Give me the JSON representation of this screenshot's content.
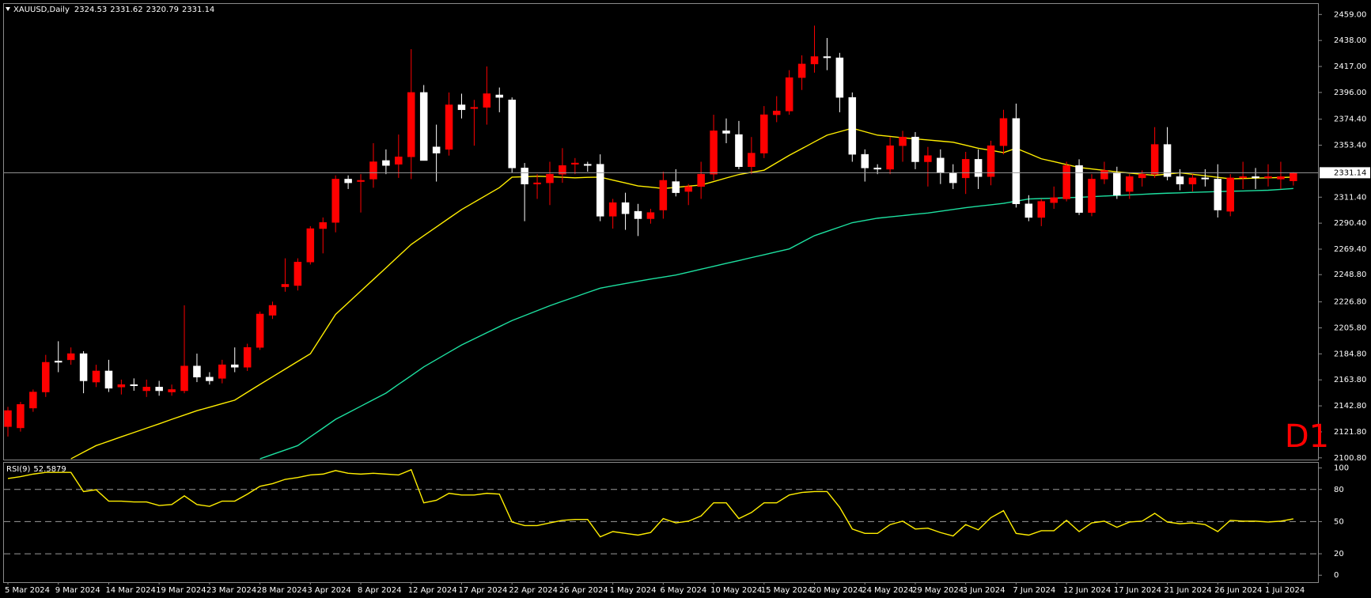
{
  "chart_data": [
    {
      "type": "candlestick",
      "title": "XAUUSD,Daily",
      "annotation": "D1",
      "categories": [
        "5 Mar 2024",
        null,
        null,
        null,
        "9 Mar 2024",
        null,
        null,
        null,
        "14 Mar 2024",
        null,
        null,
        null,
        "19 Mar 2024",
        null,
        null,
        null,
        "23 Mar 2024",
        null,
        null,
        null,
        "28 Mar 2024",
        null,
        null,
        null,
        "3 Apr 2024",
        null,
        null,
        null,
        "8 Apr 2024",
        null,
        null,
        null,
        "12 Apr 2024",
        null,
        null,
        null,
        "17 Apr 2024",
        null,
        null,
        null,
        "22 Apr 2024",
        null,
        null,
        null,
        "26 Apr 2024",
        null,
        null,
        null,
        "1 May 2024",
        null,
        null,
        null,
        "6 May 2024",
        null,
        null,
        null,
        "10 May 2024",
        null,
        null,
        null,
        "15 May 2024",
        null,
        null,
        null,
        "20 May 2024",
        null,
        null,
        null,
        "24 May 2024",
        null,
        null,
        null,
        "29 May 2024",
        null,
        null,
        null,
        "3 Jun 2024",
        null,
        null,
        null,
        "7 Jun 2024",
        null,
        null,
        null,
        "12 Jun 2024",
        null,
        null,
        null,
        "17 Jun 2024",
        null,
        null,
        null,
        "21 Jun 2024",
        null,
        null,
        null,
        "26 Jun 2024",
        null,
        null,
        null,
        "1 Jul 2024",
        null,
        null
      ],
      "open": [
        2126,
        2125,
        2141,
        2154,
        2179,
        2180,
        2185,
        2162,
        2171,
        2158,
        2160,
        2155,
        2158,
        2154,
        2155,
        2175,
        2166,
        2165,
        2176,
        2174,
        2190,
        2216,
        2239,
        2240,
        2259,
        2286,
        2291,
        2326,
        2324,
        2326,
        2341,
        2338,
        2344,
        2396,
        2352,
        2350,
        2386,
        2383,
        2384,
        2394,
        2390,
        2335,
        2322,
        2323,
        2330,
        2338,
        2338,
        2338,
        2296,
        2307,
        2300,
        2294,
        2301,
        2324,
        2316,
        2320,
        2330,
        2365,
        2362,
        2336,
        2347,
        2378,
        2381,
        2408,
        2419,
        2425,
        2424,
        2392,
        2346,
        2335,
        2334,
        2353,
        2360,
        2340,
        2343,
        2331,
        2327,
        2342,
        2328,
        2353,
        2375,
        2306,
        2295,
        2307,
        2310,
        2337,
        2299,
        2326,
        2331,
        2316,
        2327,
        2330,
        2354,
        2328,
        2322,
        2327,
        2326,
        2300,
        2327,
        2328,
        2327,
        2326,
        2324.53
      ],
      "high": [
        2142,
        2146,
        2156,
        2184,
        2195,
        2190,
        2187,
        2176,
        2180,
        2164,
        2165,
        2164,
        2163,
        2160,
        2224,
        2185,
        2170,
        2180,
        2190,
        2193,
        2219,
        2227,
        2262,
        2262,
        2288,
        2295,
        2329,
        2329,
        2330,
        2355,
        2350,
        2362,
        2431,
        2402,
        2370,
        2396,
        2395,
        2390,
        2417,
        2400,
        2392,
        2339,
        2330,
        2340,
        2351,
        2343,
        2340,
        2346,
        2310,
        2315,
        2306,
        2302,
        2332,
        2334,
        2322,
        2340,
        2378,
        2375,
        2373,
        2360,
        2385,
        2393,
        2414,
        2426,
        2450,
        2440,
        2428,
        2396,
        2350,
        2338,
        2360,
        2365,
        2364,
        2352,
        2350,
        2338,
        2348,
        2350,
        2357,
        2382,
        2387,
        2313,
        2310,
        2320,
        2340,
        2342,
        2330,
        2340,
        2336,
        2330,
        2333,
        2368,
        2368,
        2334,
        2330,
        2334,
        2338,
        2330,
        2340,
        2335,
        2338,
        2340,
        2331.62
      ],
      "low": [
        2118,
        2122,
        2138,
        2150,
        2170,
        2176,
        2153,
        2158,
        2154,
        2152,
        2155,
        2150,
        2151,
        2151,
        2153,
        2162,
        2160,
        2161,
        2170,
        2171,
        2188,
        2213,
        2235,
        2236,
        2257,
        2266,
        2283,
        2318,
        2299,
        2319,
        2330,
        2327,
        2326,
        2341,
        2324,
        2345,
        2375,
        2353,
        2370,
        2380,
        2331,
        2292,
        2310,
        2305,
        2323,
        2330,
        2332,
        2292,
        2286,
        2285,
        2280,
        2290,
        2294,
        2312,
        2305,
        2310,
        2325,
        2355,
        2334,
        2330,
        2343,
        2372,
        2378,
        2398,
        2412,
        2414,
        2380,
        2340,
        2324,
        2330,
        2330,
        2340,
        2334,
        2320,
        2322,
        2318,
        2314,
        2318,
        2321,
        2346,
        2303,
        2292,
        2288,
        2302,
        2308,
        2297,
        2296,
        2322,
        2310,
        2310,
        2320,
        2327,
        2325,
        2317,
        2316,
        2320,
        2295,
        2296,
        2318,
        2318,
        2320,
        2318,
        2320.79
      ],
      "close": [
        2139,
        2144,
        2154,
        2178,
        2178,
        2185,
        2163,
        2171,
        2157,
        2160,
        2159,
        2158,
        2155,
        2156,
        2175,
        2166,
        2163,
        2176,
        2174,
        2190,
        2217,
        2224,
        2241,
        2259,
        2286,
        2291,
        2326,
        2323,
        2325,
        2340,
        2337,
        2344,
        2396,
        2341,
        2347,
        2386,
        2382,
        2384,
        2395,
        2392,
        2335,
        2322,
        2323,
        2330,
        2337,
        2339,
        2337,
        2296,
        2307,
        2298,
        2294,
        2299,
        2325,
        2315,
        2320,
        2330,
        2365,
        2363,
        2336,
        2347,
        2378,
        2381,
        2408,
        2419,
        2425,
        2424,
        2392,
        2346,
        2335,
        2334,
        2353,
        2360,
        2340,
        2345,
        2331,
        2323,
        2342,
        2328,
        2353,
        2375,
        2306,
        2295,
        2308,
        2311,
        2337,
        2299,
        2326,
        2333,
        2313,
        2328,
        2330,
        2354,
        2328,
        2322,
        2327,
        2326,
        2301,
        2327,
        2328,
        2327,
        2328,
        2328,
        2331.14
      ],
      "up_color": "#ff0000",
      "down_color": "#ffffff",
      "ma_lines": [
        {
          "color": "#ffee00",
          "values": [
            null,
            null,
            null,
            null,
            null,
            2100.0,
            2105.4,
            2110.7,
            2114.2,
            2117.8,
            2121.3,
            2124.8,
            2128.3,
            2131.9,
            2135.4,
            2138.9,
            2141.7,
            2144.6,
            2147.4,
            2153.8,
            2160.1,
            2166.3,
            2172.5,
            2178.7,
            2184.9,
            2200.8,
            2216.7,
            2226.1,
            2235.5,
            2244.9,
            2254.3,
            2263.8,
            2273.2,
            2280.3,
            2287.3,
            2294.4,
            2301.4,
            2307.3,
            2313.2,
            2319.1,
            2327.6,
            2327.9,
            2328.3,
            2328.0,
            2327.5,
            2327.0,
            2327.4,
            2327.6,
            2325.2,
            2322.9,
            2320.5,
            2319.5,
            2318.4,
            2319.3,
            2320.3,
            2321.2,
            2324.0,
            2326.9,
            2329.7,
            2331.5,
            2333.2,
            2339.2,
            2345.2,
            2350.6,
            2356.1,
            2361.5,
            2364.3,
            2367.1,
            2364.3,
            2361.5,
            2360.5,
            2359.4,
            2358.5,
            2357.6,
            2356.7,
            2355.8,
            2353.4,
            2350.9,
            2349.2,
            2347.4,
            2350.9,
            2346.7,
            2342.4,
            2340.1,
            2337.7,
            2335.4,
            2334.2,
            2333.0,
            2331.8,
            2330.9,
            2329.9,
            2329.0,
            2330.1,
            2331.1,
            2329.9,
            2328.7,
            2327.4,
            2326.2,
            2326.5,
            2326.8,
            2327.0,
            2327.3,
            2327.6
          ]
        },
        {
          "color": "#1de0a0",
          "values": [
            null,
            null,
            null,
            null,
            null,
            null,
            null,
            null,
            null,
            null,
            null,
            null,
            null,
            null,
            null,
            null,
            null,
            null,
            null,
            null,
            2100.0,
            2103.6,
            2107.1,
            2110.7,
            2117.8,
            2124.8,
            2131.9,
            2137.2,
            2142.5,
            2147.8,
            2153.1,
            2160.2,
            2167.2,
            2174.3,
            2180.2,
            2186.1,
            2192.0,
            2196.9,
            2201.9,
            2206.8,
            2211.7,
            2215.7,
            2219.7,
            2223.7,
            2227.3,
            2230.8,
            2234.4,
            2237.9,
            2239.8,
            2241.6,
            2243.5,
            2245.2,
            2246.8,
            2248.5,
            2250.8,
            2253.2,
            2255.5,
            2257.9,
            2260.2,
            2262.6,
            2264.9,
            2267.3,
            2269.6,
            2275.0,
            2280.3,
            2283.8,
            2287.3,
            2290.8,
            2292.6,
            2294.4,
            2295.5,
            2296.5,
            2297.6,
            2298.6,
            2300.0,
            2301.5,
            2302.9,
            2304.1,
            2305.2,
            2306.4,
            2308.2,
            2309.9,
            2310.3,
            2310.6,
            2311.0,
            2311.3,
            2311.8,
            2312.3,
            2312.8,
            2313.2,
            2313.7,
            2314.2,
            2314.6,
            2314.9,
            2315.3,
            2315.6,
            2315.9,
            2316.2,
            2316.4,
            2316.7,
            2317.0,
            2317.7,
            2318.4
          ]
        }
      ],
      "ylim": [
        2099.4,
        2467.5
      ],
      "yticks": [
        {
          "value": 2459,
          "label": "2459.00"
        },
        {
          "value": 2438,
          "label": "2438.00"
        },
        {
          "value": 2417,
          "label": "2417.00"
        },
        {
          "value": 2396,
          "label": "2396.00"
        },
        {
          "value": 2374.4,
          "label": "2374.40"
        },
        {
          "value": 2353.4,
          "label": "2353.40"
        },
        {
          "value": 2311.4,
          "label": "2311.40"
        },
        {
          "value": 2290.4,
          "label": "2290.40"
        },
        {
          "value": 2269.4,
          "label": "2269.40"
        },
        {
          "value": 2248.8,
          "label": "2248.80"
        },
        {
          "value": 2226.8,
          "label": "2226.80"
        },
        {
          "value": 2205.8,
          "label": "2205.80"
        },
        {
          "value": 2184.8,
          "label": "2184.80"
        },
        {
          "value": 2163.8,
          "label": "2163.80"
        },
        {
          "value": 2142.8,
          "label": "2142.80"
        },
        {
          "value": 2121.8,
          "label": "2121.80"
        },
        {
          "value": 2100.8,
          "label": "2100.80"
        }
      ],
      "grid": false
    },
    {
      "type": "line",
      "title": "RSI(9)",
      "color": "#ffee00",
      "values": [
        90.2,
        91.9,
        94.3,
        95.9,
        95.9,
        95.9,
        78.0,
        79.7,
        69.1,
        69.1,
        68.3,
        68.3,
        65.0,
        65.9,
        74.0,
        65.9,
        64.2,
        69.1,
        69.1,
        75.6,
        82.9,
        85.4,
        89.4,
        91.1,
        93.5,
        94.3,
        97.6,
        95.1,
        94.3,
        95.1,
        94.3,
        93.5,
        98.4,
        67.5,
        69.9,
        76.4,
        74.8,
        74.8,
        76.4,
        75.6,
        49.6,
        46.3,
        46.3,
        48.8,
        51.2,
        52.0,
        52.0,
        35.8,
        40.7,
        39.0,
        37.4,
        39.8,
        52.8,
        48.8,
        50.4,
        55.3,
        67.5,
        67.5,
        52.8,
        58.5,
        67.5,
        67.5,
        74.8,
        77.2,
        78.0,
        78.0,
        63.4,
        43.1,
        39.0,
        39.0,
        47.2,
        50.4,
        43.1,
        43.9,
        39.8,
        36.6,
        47.2,
        42.3,
        53.7,
        60.2,
        39.0,
        37.4,
        41.5,
        41.5,
        51.2,
        40.7,
        48.8,
        50.4,
        44.7,
        49.6,
        50.4,
        57.7,
        49.6,
        48.0,
        48.8,
        47.2,
        40.7,
        51.2,
        50.4,
        50.4,
        49.6,
        50.4,
        52.5879
      ],
      "ylim": [
        -6.5,
        104.9
      ],
      "yticks": [
        100,
        80,
        50,
        20,
        0
      ],
      "levels": [
        80,
        50,
        20
      ]
    }
  ]
}
